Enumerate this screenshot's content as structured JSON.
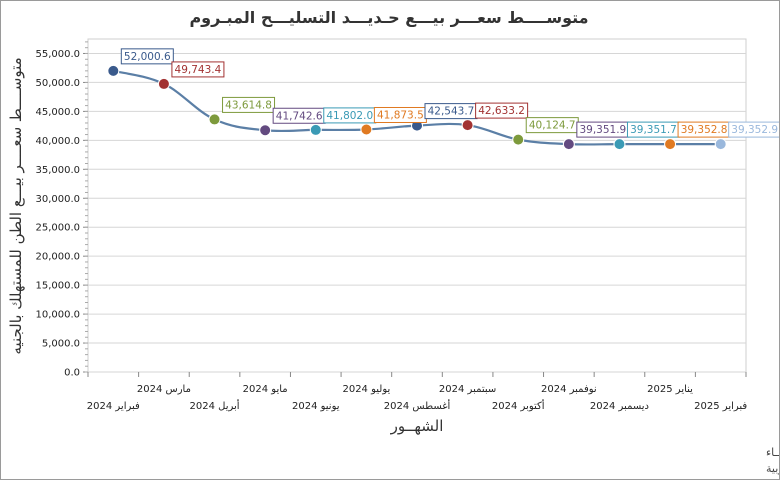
{
  "chart_data": {
    "type": "line",
    "title": "متوســــط سعـــر بيـــع حـديـــد التسليـــح المبـروم",
    "xlabel": "الشهــور",
    "ylabel": "متوســــط سعــــر بيـــع الطن للمستهلك بالجنيه",
    "ylim": [
      0,
      57500
    ],
    "ytick_step": 5000,
    "ytick_labels": [
      "0.0",
      "5,000.0",
      "10,000.0",
      "15,000.0",
      "20,000.0",
      "25,000.0",
      "30,000.0",
      "35,000.0",
      "40,000.0",
      "45,000.0",
      "50,000.0",
      "55,000.0"
    ],
    "grid": true,
    "categories": [
      "فبراير 2024",
      "مارس 2024",
      "أبريل 2024",
      "مايو 2024",
      "يونيو 2024",
      "يوليو 2024",
      "أغسطس 2024",
      "سبتمبر 2024",
      "أكتوبر 2024",
      "نوفمبر 2024",
      "ديسمبر 2024",
      "يناير 2025",
      "فبراير 2025"
    ],
    "values": [
      52000.6,
      49743.4,
      43614.8,
      41742.6,
      41802.0,
      41873.5,
      42543.7,
      42633.2,
      40124.7,
      39351.9,
      39351.7,
      39352.8,
      39352.9
    ],
    "value_labels": [
      "52,000.6",
      "49,743.4",
      "43,614.8",
      "41,742.6",
      "41,802.0",
      "41,873.5",
      "42,543.7",
      "42,633.2",
      "40,124.7",
      "39,351.9",
      "39,351.7",
      "39,352.8",
      "39,352.9"
    ],
    "line_color": "#5b7fa6",
    "point_colors": [
      "#3a5a8c",
      "#a23232",
      "#7d9a3c",
      "#634a80",
      "#3a9ab5",
      "#e07a22",
      "#3a5a8c",
      "#a23232",
      "#7d9a3c",
      "#634a80",
      "#3a9ab5",
      "#e07a22",
      "#9ab8dc"
    ]
  },
  "footer": {
    "line1": "حقوق الملكية للجهـــاز المركزي للتعبئة العـامة والأحصـــاء",
    "line2": "المصدر الأساسي للأحصاءات الرسمية لجمهورية مصر العربية"
  }
}
